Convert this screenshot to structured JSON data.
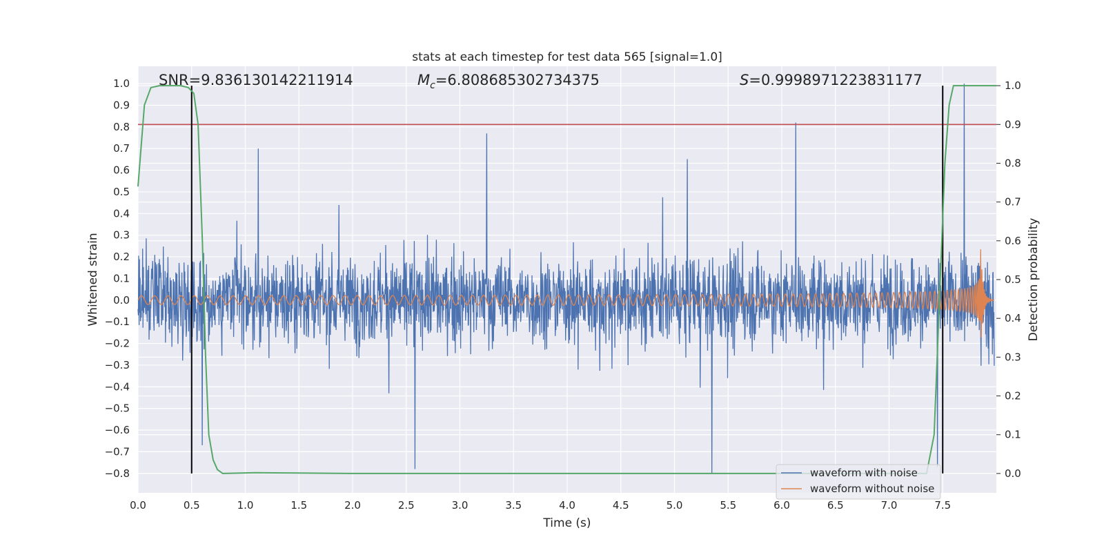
{
  "chart_data": {
    "type": "line",
    "title": "stats at each timestep for test data 565 [signal=1.0]",
    "xlabel": "Time (s)",
    "ylabel": "Whitened strain",
    "y2label": "Detection probability",
    "xlim": [
      0.0,
      8.0
    ],
    "ylim": [
      -0.89,
      1.08
    ],
    "y2lim": [
      -0.05,
      1.05
    ],
    "xticks": [
      "0.0",
      "0.5",
      "1.0",
      "1.5",
      "2.0",
      "2.5",
      "3.0",
      "3.5",
      "4.0",
      "4.5",
      "5.0",
      "5.5",
      "6.0",
      "6.5",
      "7.0",
      "7.5"
    ],
    "yticks": [
      "1.0",
      "0.9",
      "0.8",
      "0.7",
      "0.6",
      "0.5",
      "0.4",
      "0.3",
      "0.2",
      "0.1",
      "0.0",
      "−0.1",
      "−0.2",
      "−0.3",
      "−0.4",
      "−0.5",
      "−0.6",
      "−0.7",
      "−0.8"
    ],
    "y2ticks": [
      "1.0",
      "0.9",
      "0.8",
      "0.7",
      "0.6",
      "0.5",
      "0.4",
      "0.3",
      "0.2",
      "0.1",
      "0.0"
    ],
    "annotations": {
      "snr": "SNR=9.836130142211914",
      "mc_symbol": "M",
      "mc_sub": "c",
      "mc_value": "=6.808685302734375",
      "s_symbol": "S",
      "s_value": "=0.9998971223831177"
    },
    "grid": true,
    "legend_position": "lower-right",
    "series": [
      {
        "name": "waveform with noise",
        "color": "#4c72b0",
        "axis": "left",
        "description": "noisy whitened strain, roughly ±0.35 envelope with peaks to 1.0 near t=7.7 and −0.8 near t=5.35",
        "peaks": [
          {
            "x": 0.6,
            "y": -0.67
          },
          {
            "x": 1.12,
            "y": 0.7
          },
          {
            "x": 2.58,
            "y": -0.78
          },
          {
            "x": 3.25,
            "y": 0.77
          },
          {
            "x": 5.35,
            "y": -0.8
          },
          {
            "x": 6.13,
            "y": 0.82
          },
          {
            "x": 7.45,
            "y": -0.77
          },
          {
            "x": 7.7,
            "y": 1.0
          }
        ]
      },
      {
        "name": "waveform without noise",
        "color": "#dd8452",
        "axis": "left",
        "description": "chirp signal with amplitude growing from ~0.02 to ~0.28 at merger near t=7.85, then ring-down to 0",
        "amplitude_start": 0.02,
        "amplitude_peak": 0.28,
        "merger_time": 7.85
      },
      {
        "name": "detection probability",
        "color": "#55a868",
        "axis": "right",
        "x": [
          0.0,
          0.06,
          0.12,
          0.2,
          0.3,
          0.4,
          0.47,
          0.52,
          0.56,
          0.6,
          0.63,
          0.66,
          0.7,
          0.74,
          0.79,
          1.1,
          1.5,
          2.0,
          3.0,
          4.0,
          5.0,
          6.0,
          7.0,
          7.35,
          7.42,
          7.47,
          7.52,
          7.56,
          7.6,
          7.65,
          7.7,
          7.8,
          7.9,
          8.0
        ],
        "y": [
          0.74,
          0.95,
          0.995,
          1.0,
          1.0,
          1.0,
          0.995,
          0.98,
          0.9,
          0.6,
          0.3,
          0.1,
          0.035,
          0.01,
          0.0,
          0.002,
          0.001,
          0.0,
          0.0,
          0.0,
          0.0,
          0.0,
          0.0,
          0.0,
          0.1,
          0.45,
          0.8,
          0.95,
          1.0,
          1.0,
          1.0,
          1.0,
          1.0,
          1.0
        ]
      }
    ],
    "reference_lines": {
      "threshold_color": "#c44e52",
      "threshold_probability": 0.9,
      "vertical_line_color": "#000000",
      "vertical_line_times": [
        0.5,
        7.5
      ]
    }
  }
}
